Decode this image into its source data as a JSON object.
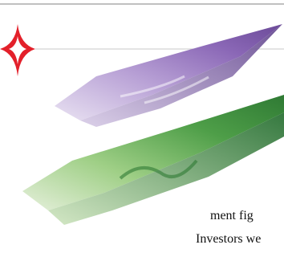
{
  "text": {
    "lines": [
      "ment fig",
      "Investors we"
    ]
  }
}
